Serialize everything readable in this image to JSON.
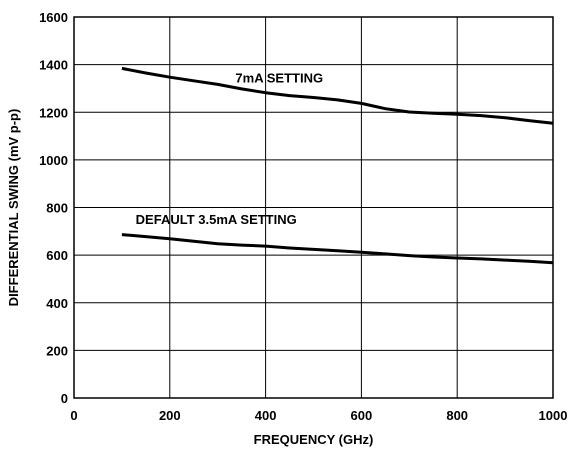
{
  "chart_data": {
    "type": "line",
    "title": "",
    "xlabel": "FREQUENCY (GHz)",
    "ylabel": "DIFFERENTIAL SWING (mV p-p)",
    "xlim": [
      0,
      1000
    ],
    "ylim": [
      0,
      1600
    ],
    "xticks": [
      0,
      200,
      400,
      600,
      800,
      1000
    ],
    "yticks": [
      0,
      200,
      400,
      600,
      800,
      1000,
      1200,
      1400,
      1600
    ],
    "grid": true,
    "series": [
      {
        "name": "7mA SETTING",
        "x": [
          100,
          150,
          200,
          250,
          300,
          350,
          400,
          450,
          500,
          550,
          600,
          650,
          700,
          750,
          800,
          850,
          900,
          950,
          1000
        ],
        "y": [
          1384,
          1365,
          1347,
          1332,
          1317,
          1298,
          1282,
          1270,
          1262,
          1252,
          1237,
          1215,
          1201,
          1196,
          1192,
          1186,
          1177,
          1165,
          1154
        ]
      },
      {
        "name": "DEFAULT 3.5mA SETTING",
        "x": [
          100,
          150,
          200,
          250,
          300,
          350,
          400,
          450,
          500,
          550,
          600,
          650,
          700,
          750,
          800,
          850,
          900,
          950,
          1000
        ],
        "y": [
          686,
          678,
          669,
          658,
          648,
          642,
          638,
          630,
          624,
          618,
          612,
          605,
          598,
          592,
          588,
          584,
          579,
          574,
          568
        ]
      }
    ]
  }
}
